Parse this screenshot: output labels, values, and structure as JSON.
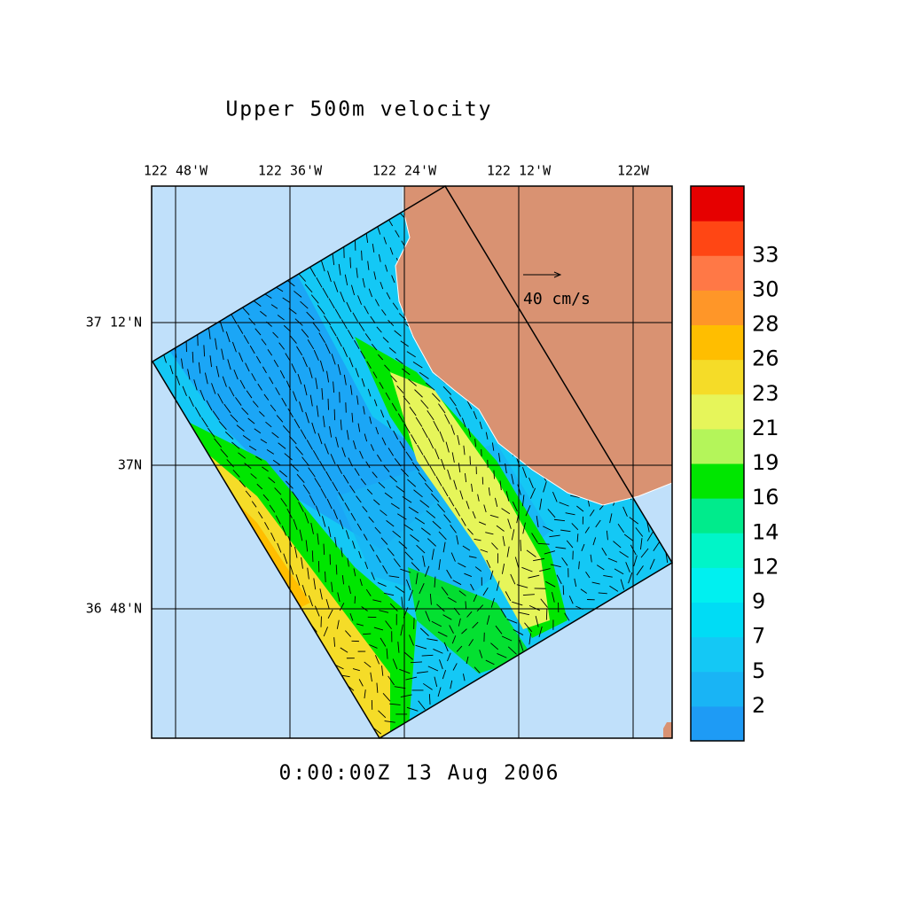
{
  "title": "Upper 500m velocity",
  "longitude_labels": [
    "122 48'W",
    "122 36'W",
    "122 24'W",
    "122 12'W",
    "122W"
  ],
  "latitude_labels": [
    "37 12'N",
    "37N",
    "36 48'N"
  ],
  "vector_scale": "40 cm/s",
  "timestamp": "0:00:00Z  13 Aug 2006",
  "colorbar": {
    "labels": [
      "2",
      "5",
      "7",
      "9",
      "12",
      "14",
      "16",
      "19",
      "21",
      "23",
      "26",
      "28",
      "30",
      "33"
    ],
    "colors": [
      "#1e9bf5",
      "#19b4f5",
      "#14c8f5",
      "#00dcf5",
      "#00f0f0",
      "#00f5c8",
      "#00eb8c",
      "#00e600",
      "#b4f55a",
      "#e6f55a",
      "#f5dc28",
      "#ffbe00",
      "#ff9628",
      "#ff7846",
      "#ff4614",
      "#e60000"
    ]
  }
}
